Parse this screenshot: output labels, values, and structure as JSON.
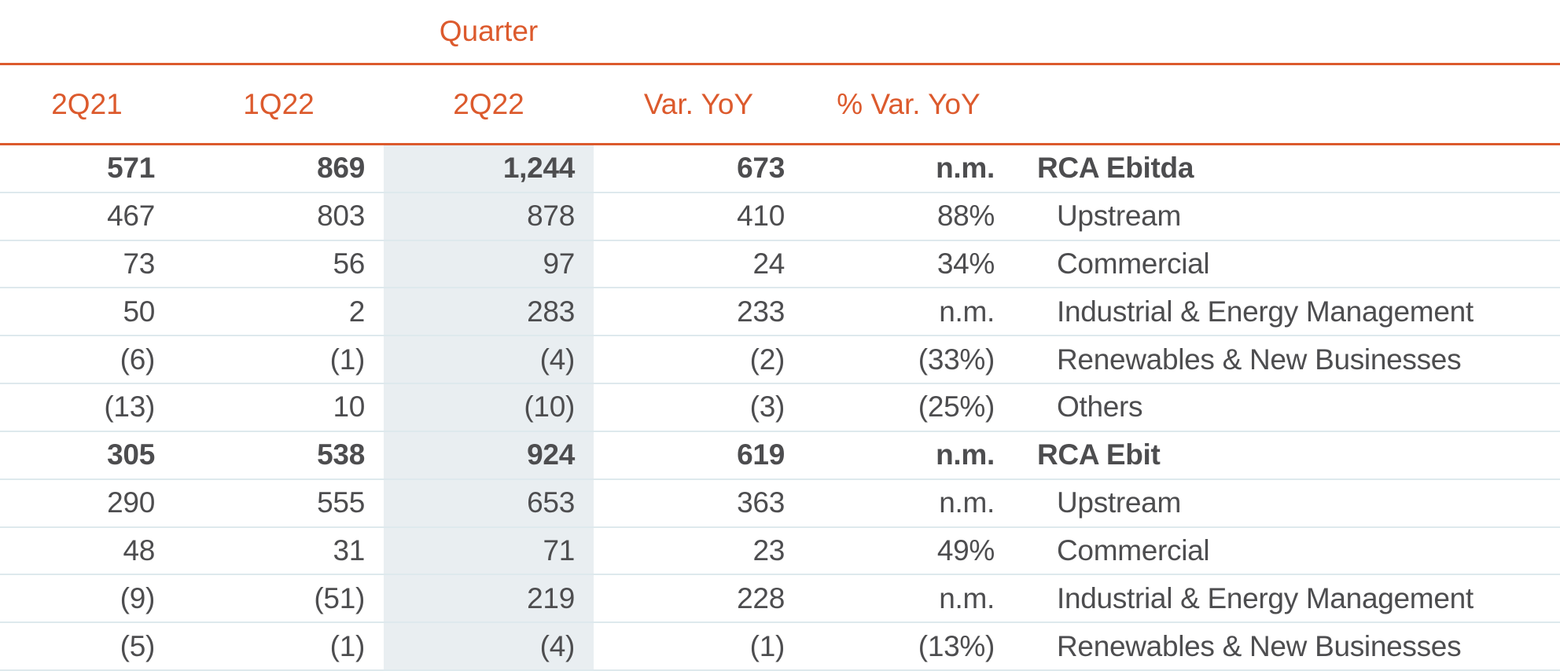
{
  "chart_data": {
    "type": "table",
    "group_header": "Quarter",
    "columns": [
      "2Q21",
      "1Q22",
      "2Q22",
      "Var. YoY",
      "% Var. YoY"
    ],
    "highlighted_column": "2Q22",
    "rows": [
      {
        "label": "RCA Ebitda",
        "bold": true,
        "indent": false,
        "values": [
          "571",
          "869",
          "1,244",
          "673",
          "n.m."
        ]
      },
      {
        "label": "Upstream",
        "bold": false,
        "indent": true,
        "values": [
          "467",
          "803",
          "878",
          "410",
          "88%"
        ]
      },
      {
        "label": "Commercial",
        "bold": false,
        "indent": true,
        "values": [
          "73",
          "56",
          "97",
          "24",
          "34%"
        ]
      },
      {
        "label": "Industrial & Energy Management",
        "bold": false,
        "indent": true,
        "values": [
          "50",
          "2",
          "283",
          "233",
          "n.m."
        ]
      },
      {
        "label": "Renewables & New Businesses",
        "bold": false,
        "indent": true,
        "values": [
          "(6)",
          "(1)",
          "(4)",
          "(2)",
          "(33%)"
        ]
      },
      {
        "label": "Others",
        "bold": false,
        "indent": true,
        "values": [
          "(13)",
          "10",
          "(10)",
          "(3)",
          "(25%)"
        ]
      },
      {
        "label": "RCA Ebit",
        "bold": true,
        "indent": false,
        "values": [
          "305",
          "538",
          "924",
          "619",
          "n.m."
        ]
      },
      {
        "label": "Upstream",
        "bold": false,
        "indent": true,
        "values": [
          "290",
          "555",
          "653",
          "363",
          "n.m."
        ]
      },
      {
        "label": "Commercial",
        "bold": false,
        "indent": true,
        "values": [
          "48",
          "31",
          "71",
          "23",
          "49%"
        ]
      },
      {
        "label": "Industrial & Energy Management",
        "bold": false,
        "indent": true,
        "values": [
          "(9)",
          "(51)",
          "219",
          "228",
          "n.m."
        ]
      },
      {
        "label": "Renewables & New Businesses",
        "bold": false,
        "indent": true,
        "values": [
          "(5)",
          "(1)",
          "(4)",
          "(1)",
          "(13%)"
        ]
      }
    ]
  },
  "colors": {
    "accent_orange": "#DC5A2D",
    "text_dark": "#4D4D4F",
    "highlight_column_bg": "#E9EEF1",
    "row_divider": "#DEE9ED",
    "background": "#FFFFFF"
  }
}
